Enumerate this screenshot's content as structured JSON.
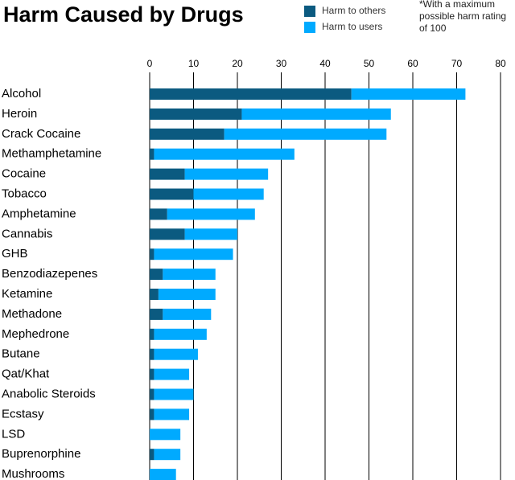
{
  "chart_data": {
    "type": "stacked-barh",
    "title": "Harm Caused by Drugs",
    "note": [
      "*With a maximum",
      "possible harm rating",
      "of 100"
    ],
    "categories": [
      "Alcohol",
      "Heroin",
      "Crack Cocaine",
      "Methamphetamine",
      "Cocaine",
      "Tobacco",
      "Amphetamine",
      "Cannabis",
      "GHB",
      "Benzodiazepenes",
      "Ketamine",
      "Methadone",
      "Mephedrone",
      "Butane",
      "Qat/Khat",
      "Anabolic Steroids",
      "Ecstasy",
      "LSD",
      "Buprenorphine",
      "Mushrooms"
    ],
    "series": [
      {
        "name": "Harm to others",
        "color": "#0b5a80",
        "values": [
          46,
          21,
          17,
          1,
          8,
          10,
          4,
          8,
          1,
          3,
          2,
          3,
          1,
          1,
          1,
          1,
          1,
          0,
          1,
          0
        ]
      },
      {
        "name": "Harm to users",
        "color": "#00aaff",
        "values": [
          26,
          34,
          37,
          32,
          19,
          16,
          20,
          12,
          18,
          12,
          13,
          11,
          12,
          10,
          8,
          9,
          8,
          7,
          6,
          6
        ]
      }
    ],
    "xlim": [
      0,
      80
    ],
    "xticks": [
      0,
      10,
      20,
      30,
      40,
      50,
      60,
      70,
      80
    ],
    "grid": true
  }
}
